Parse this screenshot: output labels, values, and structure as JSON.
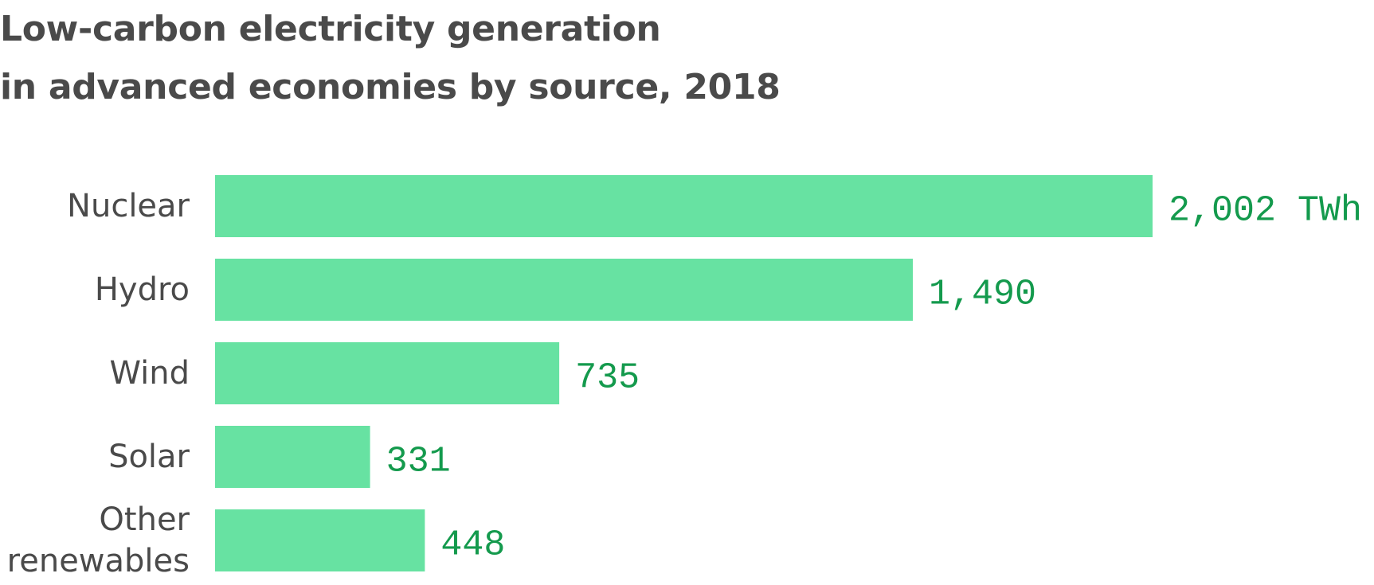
{
  "chart_data": {
    "type": "bar",
    "orientation": "horizontal",
    "title_lines": [
      "Low-carbon electricity generation",
      "in advanced economies by source, 2018"
    ],
    "categories": [
      [
        "Nuclear"
      ],
      [
        "Hydro"
      ],
      [
        "Wind"
      ],
      [
        "Solar"
      ],
      [
        "Other",
        "renewables"
      ]
    ],
    "values": [
      2002,
      1490,
      735,
      331,
      448
    ],
    "value_labels": [
      "2,002 TWh",
      "1,490",
      "735",
      "331",
      "448"
    ],
    "unit": "TWh",
    "bar_color": "#67e2a2",
    "label_color": "#149a4d",
    "grid": false,
    "legend": "none"
  }
}
